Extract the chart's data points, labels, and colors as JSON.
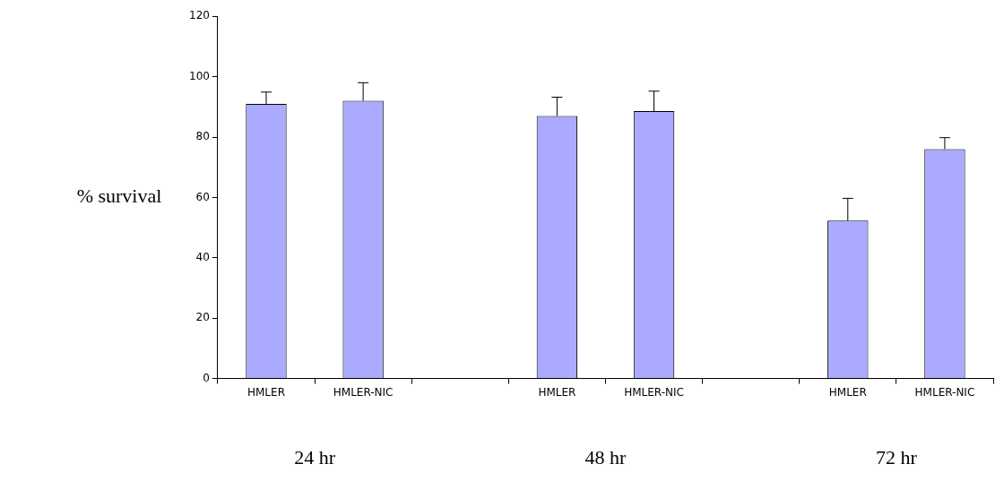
{
  "chart_data": {
    "type": "bar",
    "ylabel": "% survival",
    "categories": [
      "HMLER",
      "HMLER-NIC",
      null,
      "HMLER",
      "HMLER-NIC",
      null,
      "HMLER",
      "HMLER-NIC"
    ],
    "values": [
      91,
      92,
      null,
      87,
      88.6,
      null,
      52.3,
      76
    ],
    "errors": [
      [
        91,
        94.9
      ],
      [
        92,
        98
      ],
      null,
      [
        87,
        93.2
      ],
      [
        88.6,
        95.2
      ],
      null,
      [
        52.3,
        59.7
      ],
      [
        76,
        79.8
      ]
    ],
    "color": "#aaaaff",
    "annotations": [
      "24 hr",
      "48 hr",
      "72 hr"
    ],
    "ylim": [
      0,
      120
    ],
    "yticks": [
      0,
      20,
      40,
      60,
      80,
      100,
      120
    ],
    "grid": false,
    "legend": false
  }
}
